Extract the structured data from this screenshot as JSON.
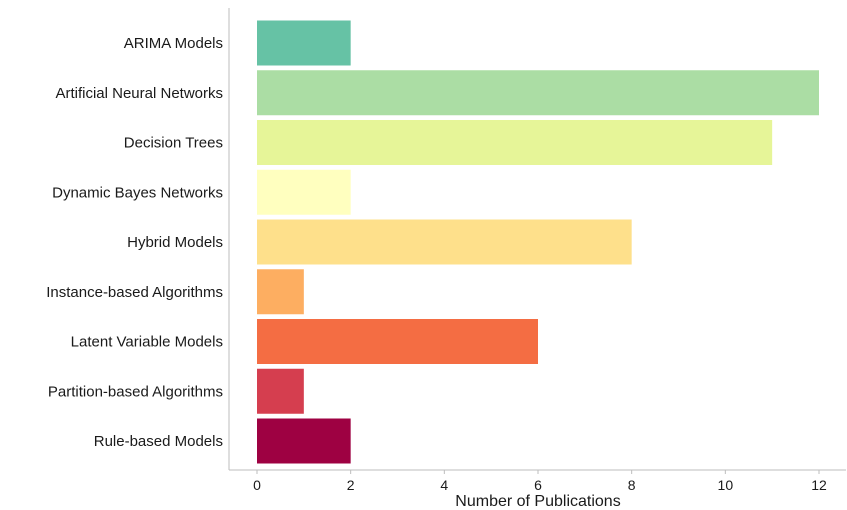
{
  "chart_data": {
    "type": "bar",
    "orientation": "horizontal",
    "categories": [
      "ARIMA Models",
      "Artificial Neural Networks",
      "Decision Trees",
      "Dynamic Bayes Networks",
      "Hybrid Models",
      "Instance-based Algorithms",
      "Latent Variable Models",
      "Partition-based Algorithms",
      "Rule-based Models"
    ],
    "values": [
      2,
      12,
      11,
      2,
      8,
      1,
      6,
      1,
      2
    ],
    "colors": [
      "#66c2a5",
      "#abdda4",
      "#e6f598",
      "#ffffbf",
      "#fee08b",
      "#fdae61",
      "#f46d43",
      "#d53e4f",
      "#9e0142"
    ],
    "xlabel": "Number of Publications",
    "ylabel": "",
    "title": "",
    "xlim": [
      0,
      12
    ],
    "xticks": [
      0,
      2,
      4,
      6,
      8,
      10,
      12
    ],
    "grid": false,
    "legend": "none"
  }
}
